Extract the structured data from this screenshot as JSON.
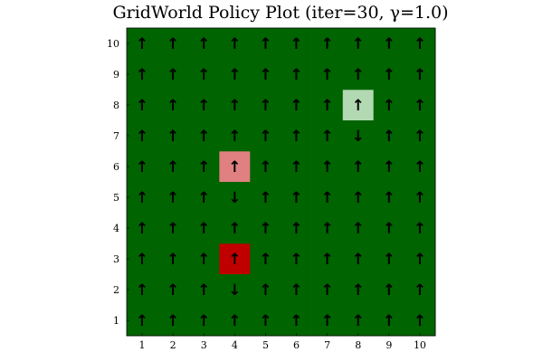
{
  "chart_data": {
    "type": "heatmap",
    "title": "GridWorld Policy Plot (iter=30, γ=1.0)",
    "x": [
      1,
      2,
      3,
      4,
      5,
      6,
      7,
      8,
      9,
      10
    ],
    "y": [
      1,
      2,
      3,
      4,
      5,
      6,
      7,
      8,
      9,
      10
    ],
    "xlim": [
      0.5,
      10.5
    ],
    "ylim": [
      0.5,
      10.5
    ],
    "xlabel": "",
    "ylabel": "",
    "grid": false,
    "colors": {
      "default": "#006400",
      "strong_negative": "#c00000",
      "weak_negative": "#e08080",
      "positive": "#b3d9b3"
    },
    "special_cells": [
      {
        "x": 4,
        "y": 3,
        "kind": "strong_negative"
      },
      {
        "x": 4,
        "y": 6,
        "kind": "weak_negative"
      },
      {
        "x": 8,
        "y": 8,
        "kind": "positive"
      }
    ],
    "policy": [
      [
        "↑",
        "↑",
        "↑",
        "↑",
        "↑",
        "↑",
        "↑",
        "↑",
        "↑",
        "↑"
      ],
      [
        "↑",
        "↑",
        "↑",
        "↓",
        "↑",
        "↑",
        "↑",
        "↑",
        "↑",
        "↑"
      ],
      [
        "↑",
        "↑",
        "↑",
        "↑",
        "↑",
        "↑",
        "↑",
        "↑",
        "↑",
        "↑"
      ],
      [
        "↑",
        "↑",
        "↑",
        "↑",
        "↑",
        "↑",
        "↑",
        "↑",
        "↑",
        "↑"
      ],
      [
        "↑",
        "↑",
        "↑",
        "↓",
        "↑",
        "↑",
        "↑",
        "↑",
        "↑",
        "↑"
      ],
      [
        "↑",
        "↑",
        "↑",
        "↑",
        "↑",
        "↑",
        "↑",
        "↑",
        "↑",
        "↑"
      ],
      [
        "↑",
        "↑",
        "↑",
        "↑",
        "↑",
        "↑",
        "↑",
        "↓",
        "↑",
        "↑"
      ],
      [
        "↑",
        "↑",
        "↑",
        "↑",
        "↑",
        "↑",
        "↑",
        "↑",
        "↑",
        "↑"
      ],
      [
        "↑",
        "↑",
        "↑",
        "↑",
        "↑",
        "↑",
        "↑",
        "↑",
        "↑",
        "↑"
      ],
      [
        "↑",
        "↑",
        "↑",
        "↑",
        "↑",
        "↑",
        "↑",
        "↑",
        "↑",
        "↑"
      ]
    ]
  }
}
